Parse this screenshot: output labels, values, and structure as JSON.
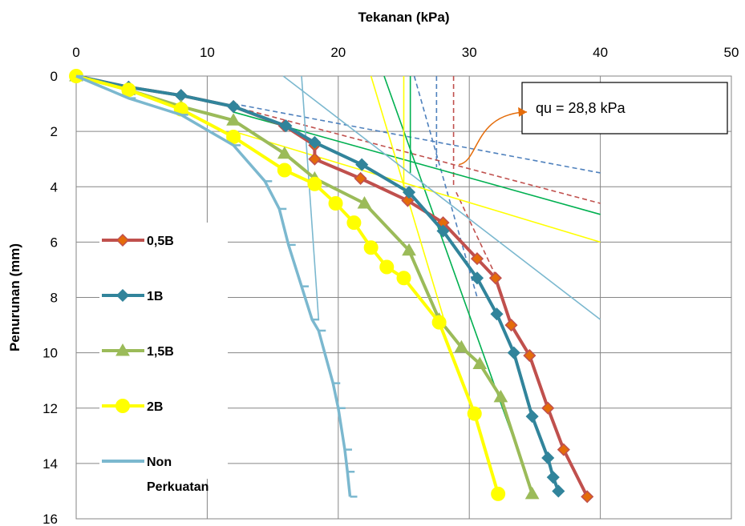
{
  "chart_data": {
    "type": "line",
    "title": "",
    "xlabel": "Tekanan (kPa)",
    "ylabel": "Penurunan (mm)",
    "xlim": [
      0,
      50
    ],
    "ylim": [
      0,
      16
    ],
    "x_axis_position": "top",
    "y_axis_inverted": true,
    "xticks": [
      "0",
      "10",
      "20",
      "30",
      "40",
      "50"
    ],
    "yticks": [
      "0",
      "2",
      "4",
      "6",
      "8",
      "10",
      "12",
      "14",
      "16"
    ],
    "grid": true,
    "legend_position": "left",
    "series": [
      {
        "name": "0,5B",
        "color": "#C0504D",
        "marker": "diamond",
        "marker_fill": "#E46C0A",
        "points": [
          [
            0,
            0
          ],
          [
            4,
            0.4
          ],
          [
            8,
            0.7
          ],
          [
            12,
            1.1
          ],
          [
            15.9,
            1.8
          ],
          [
            18.2,
            2.5
          ],
          [
            18.2,
            3.0
          ],
          [
            21.7,
            3.7
          ],
          [
            25.3,
            4.5
          ],
          [
            28,
            5.3
          ],
          [
            30.6,
            6.6
          ],
          [
            32,
            7.3
          ],
          [
            33.2,
            9.0
          ],
          [
            34.6,
            10.1
          ],
          [
            36,
            12.0
          ],
          [
            37.2,
            13.5
          ],
          [
            39,
            15.2
          ]
        ]
      },
      {
        "name": "1B",
        "color": "#31849B",
        "marker": "diamond",
        "marker_fill": "#31849B",
        "points": [
          [
            0,
            0
          ],
          [
            4,
            0.4
          ],
          [
            8,
            0.7
          ],
          [
            12,
            1.1
          ],
          [
            16,
            1.8
          ],
          [
            18.2,
            2.4
          ],
          [
            21.8,
            3.2
          ],
          [
            25.4,
            4.2
          ],
          [
            28,
            5.6
          ],
          [
            30.6,
            7.3
          ],
          [
            32.1,
            8.6
          ],
          [
            33.4,
            10.0
          ],
          [
            34.8,
            12.3
          ],
          [
            36,
            13.8
          ],
          [
            36.4,
            14.5
          ],
          [
            36.8,
            15.0
          ]
        ]
      },
      {
        "name": "1,5B",
        "color": "#9BBB59",
        "marker": "triangle",
        "marker_fill": "#9BBB59",
        "points": [
          [
            0,
            0
          ],
          [
            4,
            0.5
          ],
          [
            8,
            1.1
          ],
          [
            12,
            1.6
          ],
          [
            15.9,
            2.8
          ],
          [
            18.2,
            3.7
          ],
          [
            22,
            4.6
          ],
          [
            25.4,
            6.3
          ],
          [
            27.7,
            8.8
          ],
          [
            29.4,
            9.8
          ],
          [
            30.8,
            10.4
          ],
          [
            32.4,
            11.6
          ],
          [
            34.8,
            15.1
          ]
        ]
      },
      {
        "name": "2B",
        "color": "#FFFF00",
        "marker": "circle",
        "marker_fill": "#FFFF00",
        "points": [
          [
            0,
            0
          ],
          [
            4,
            0.5
          ],
          [
            8,
            1.2
          ],
          [
            12,
            2.2
          ],
          [
            15.9,
            3.4
          ],
          [
            18.2,
            3.9
          ],
          [
            19.8,
            4.6
          ],
          [
            21.2,
            5.3
          ],
          [
            22.5,
            6.2
          ],
          [
            23.7,
            6.9
          ],
          [
            25,
            7.3
          ],
          [
            27.7,
            8.9
          ],
          [
            30.4,
            12.2
          ],
          [
            32.2,
            15.1
          ]
        ]
      },
      {
        "name": "Non Perkuatan",
        "color": "#7BB8CF",
        "marker": "dash",
        "marker_fill": "#7BB8CF",
        "points": [
          [
            0,
            0
          ],
          [
            4,
            0.8
          ],
          [
            8,
            1.4
          ],
          [
            12,
            2.5
          ],
          [
            14.4,
            3.8
          ],
          [
            15.5,
            4.8
          ],
          [
            16.2,
            6.1
          ],
          [
            17.2,
            7.6
          ],
          [
            18,
            8.8
          ],
          [
            18.5,
            9.2
          ],
          [
            19.6,
            11.1
          ],
          [
            20,
            12.0
          ],
          [
            20.5,
            13.5
          ],
          [
            20.7,
            14.3
          ],
          [
            20.9,
            15.2
          ]
        ]
      }
    ],
    "tangent_lines": [
      {
        "color": "#4F81BD",
        "dashed": true,
        "points": [
          [
            12,
            1.0
          ],
          [
            40,
            3.5
          ]
        ]
      },
      {
        "color": "#4F81BD",
        "dashed": true,
        "points": [
          [
            25.8,
            0
          ],
          [
            30.6,
            8.0
          ]
        ]
      },
      {
        "color": "#4F81BD",
        "dashed": true,
        "points": [
          [
            27.5,
            0
          ],
          [
            27.5,
            3.3
          ]
        ]
      },
      {
        "color": "#C0504D",
        "dashed": true,
        "points": [
          [
            12,
            1.1
          ],
          [
            40,
            4.6
          ]
        ]
      },
      {
        "color": "#C0504D",
        "dashed": true,
        "points": [
          [
            28.8,
            0
          ],
          [
            28.8,
            4.0
          ]
        ]
      },
      {
        "color": "#C0504D",
        "dashed": true,
        "points": [
          [
            29,
            4.2
          ],
          [
            32,
            7.2
          ]
        ]
      },
      {
        "color": "#00B050",
        "dashed": false,
        "points": [
          [
            12,
            1.3
          ],
          [
            40,
            5.0
          ]
        ]
      },
      {
        "color": "#00B050",
        "dashed": false,
        "points": [
          [
            23.5,
            0
          ],
          [
            34.8,
            15.0
          ]
        ]
      },
      {
        "color": "#00B050",
        "dashed": false,
        "points": [
          [
            25.5,
            0
          ],
          [
            25.5,
            3.5
          ]
        ]
      },
      {
        "color": "#FFFF00",
        "dashed": false,
        "points": [
          [
            12,
            2.0
          ],
          [
            40,
            6.0
          ]
        ]
      },
      {
        "color": "#FFFF00",
        "dashed": false,
        "points": [
          [
            22.5,
            0
          ],
          [
            28.2,
            9.0
          ]
        ]
      },
      {
        "color": "#FFFF00",
        "dashed": false,
        "points": [
          [
            25,
            0
          ],
          [
            25,
            4.2
          ]
        ]
      },
      {
        "color": "#7BB8CF",
        "dashed": false,
        "points": [
          [
            15.8,
            0
          ],
          [
            40,
            8.8
          ]
        ]
      },
      {
        "color": "#7BB8CF",
        "dashed": false,
        "points": [
          [
            17.2,
            0
          ],
          [
            18.5,
            8.8
          ]
        ]
      }
    ],
    "annotation": {
      "text": "qu = 28,8 kPa",
      "arrow_color": "#E46C0A",
      "arrow_from": [
        29.2,
        3.2
      ],
      "arrow_to": [
        34.4,
        1.3
      ]
    }
  }
}
